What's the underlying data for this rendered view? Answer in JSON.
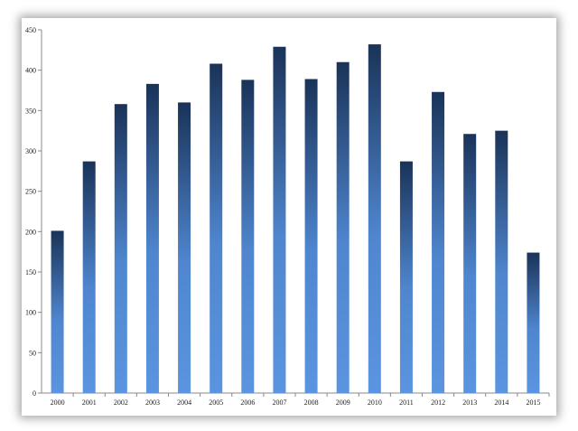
{
  "chart_data": {
    "type": "bar",
    "title": "",
    "xlabel": "",
    "ylabel": "",
    "categories": [
      "2000",
      "2001",
      "2002",
      "2003",
      "2004",
      "2005",
      "2006",
      "2007",
      "2008",
      "2009",
      "2010",
      "2011",
      "2012",
      "2013",
      "2014",
      "2015"
    ],
    "values": [
      201,
      287,
      358,
      383,
      360,
      408,
      388,
      429,
      389,
      410,
      432,
      287,
      373,
      321,
      325,
      174
    ],
    "ylim": [
      0,
      450
    ],
    "yticks": [
      0,
      50,
      100,
      150,
      200,
      250,
      300,
      350,
      400,
      450
    ],
    "grid": false,
    "legend": "none",
    "colors": {
      "bar_top": "#1a3358",
      "bar_mid": "#4f86cf",
      "bar_bottom": "#5b94df",
      "axis": "#888888"
    }
  }
}
